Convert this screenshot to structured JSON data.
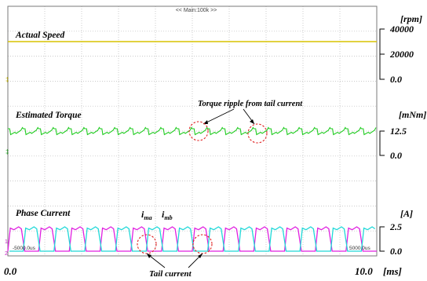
{
  "header": {
    "scope_title": "<< Main:100k >>"
  },
  "panels": {
    "speed": {
      "title": "Actual Speed",
      "unit": "[rpm]",
      "ticks": [
        "40000",
        "20000",
        "0.0"
      ]
    },
    "torque": {
      "title": "Estimated Torque",
      "unit": "[mNm]",
      "ticks": [
        "12.5",
        "0.0"
      ]
    },
    "current": {
      "title": "Phase Current",
      "unit": "[A]",
      "ticks": [
        "2.5",
        "0.0"
      ]
    }
  },
  "x_axis": {
    "min_label": "0.0",
    "max_label": "10.0",
    "unit": "[ms]"
  },
  "scope_markers": {
    "left": "-5000.0us",
    "right": "5000.0us"
  },
  "annotations": {
    "torque_ripple": "Torque ripple from tail current",
    "ima_main": "i",
    "ima_sub": "ma",
    "imb_main": "i",
    "imb_sub": "mb",
    "tail_current": "Tail current"
  },
  "colors": {
    "speed": "#d8c400",
    "torque": "#22cc22",
    "ima": "#e020e0",
    "imb": "#20d8d8",
    "grid": "#b8b8b8",
    "highlight": "#e02020"
  },
  "chart_data": [
    {
      "type": "line",
      "title": "Actual Speed",
      "ylabel": "[rpm]",
      "xlabel": "[ms]",
      "xlim": [
        0,
        10
      ],
      "ylim": [
        0,
        40000
      ],
      "series": [
        {
          "values": [
            {
              "x": 0,
              "y": 30000
            },
            {
              "x": 10,
              "y": 30000
            }
          ]
        }
      ]
    },
    {
      "type": "line",
      "title": "Estimated Torque",
      "ylabel": "[mNm]",
      "xlabel": "[ms]",
      "xlim": [
        0,
        10
      ],
      "ylim": [
        0,
        12.5
      ],
      "series": [
        {
          "mean": 12.5,
          "ripple_amplitude": 2.0,
          "ripple_periods": 24
        }
      ]
    },
    {
      "type": "line",
      "title": "Phase Current",
      "ylabel": "[A]",
      "xlabel": "[ms]",
      "xlim": [
        0,
        10
      ],
      "ylim": [
        0,
        2.5
      ],
      "series": [
        {
          "name": "i_ma",
          "shape": "trapezoidal",
          "amplitude": 2.5,
          "periods": 12,
          "phase": 0
        },
        {
          "name": "i_mb",
          "shape": "trapezoidal",
          "amplitude": 2.5,
          "periods": 12,
          "phase": 0.5
        }
      ]
    }
  ]
}
